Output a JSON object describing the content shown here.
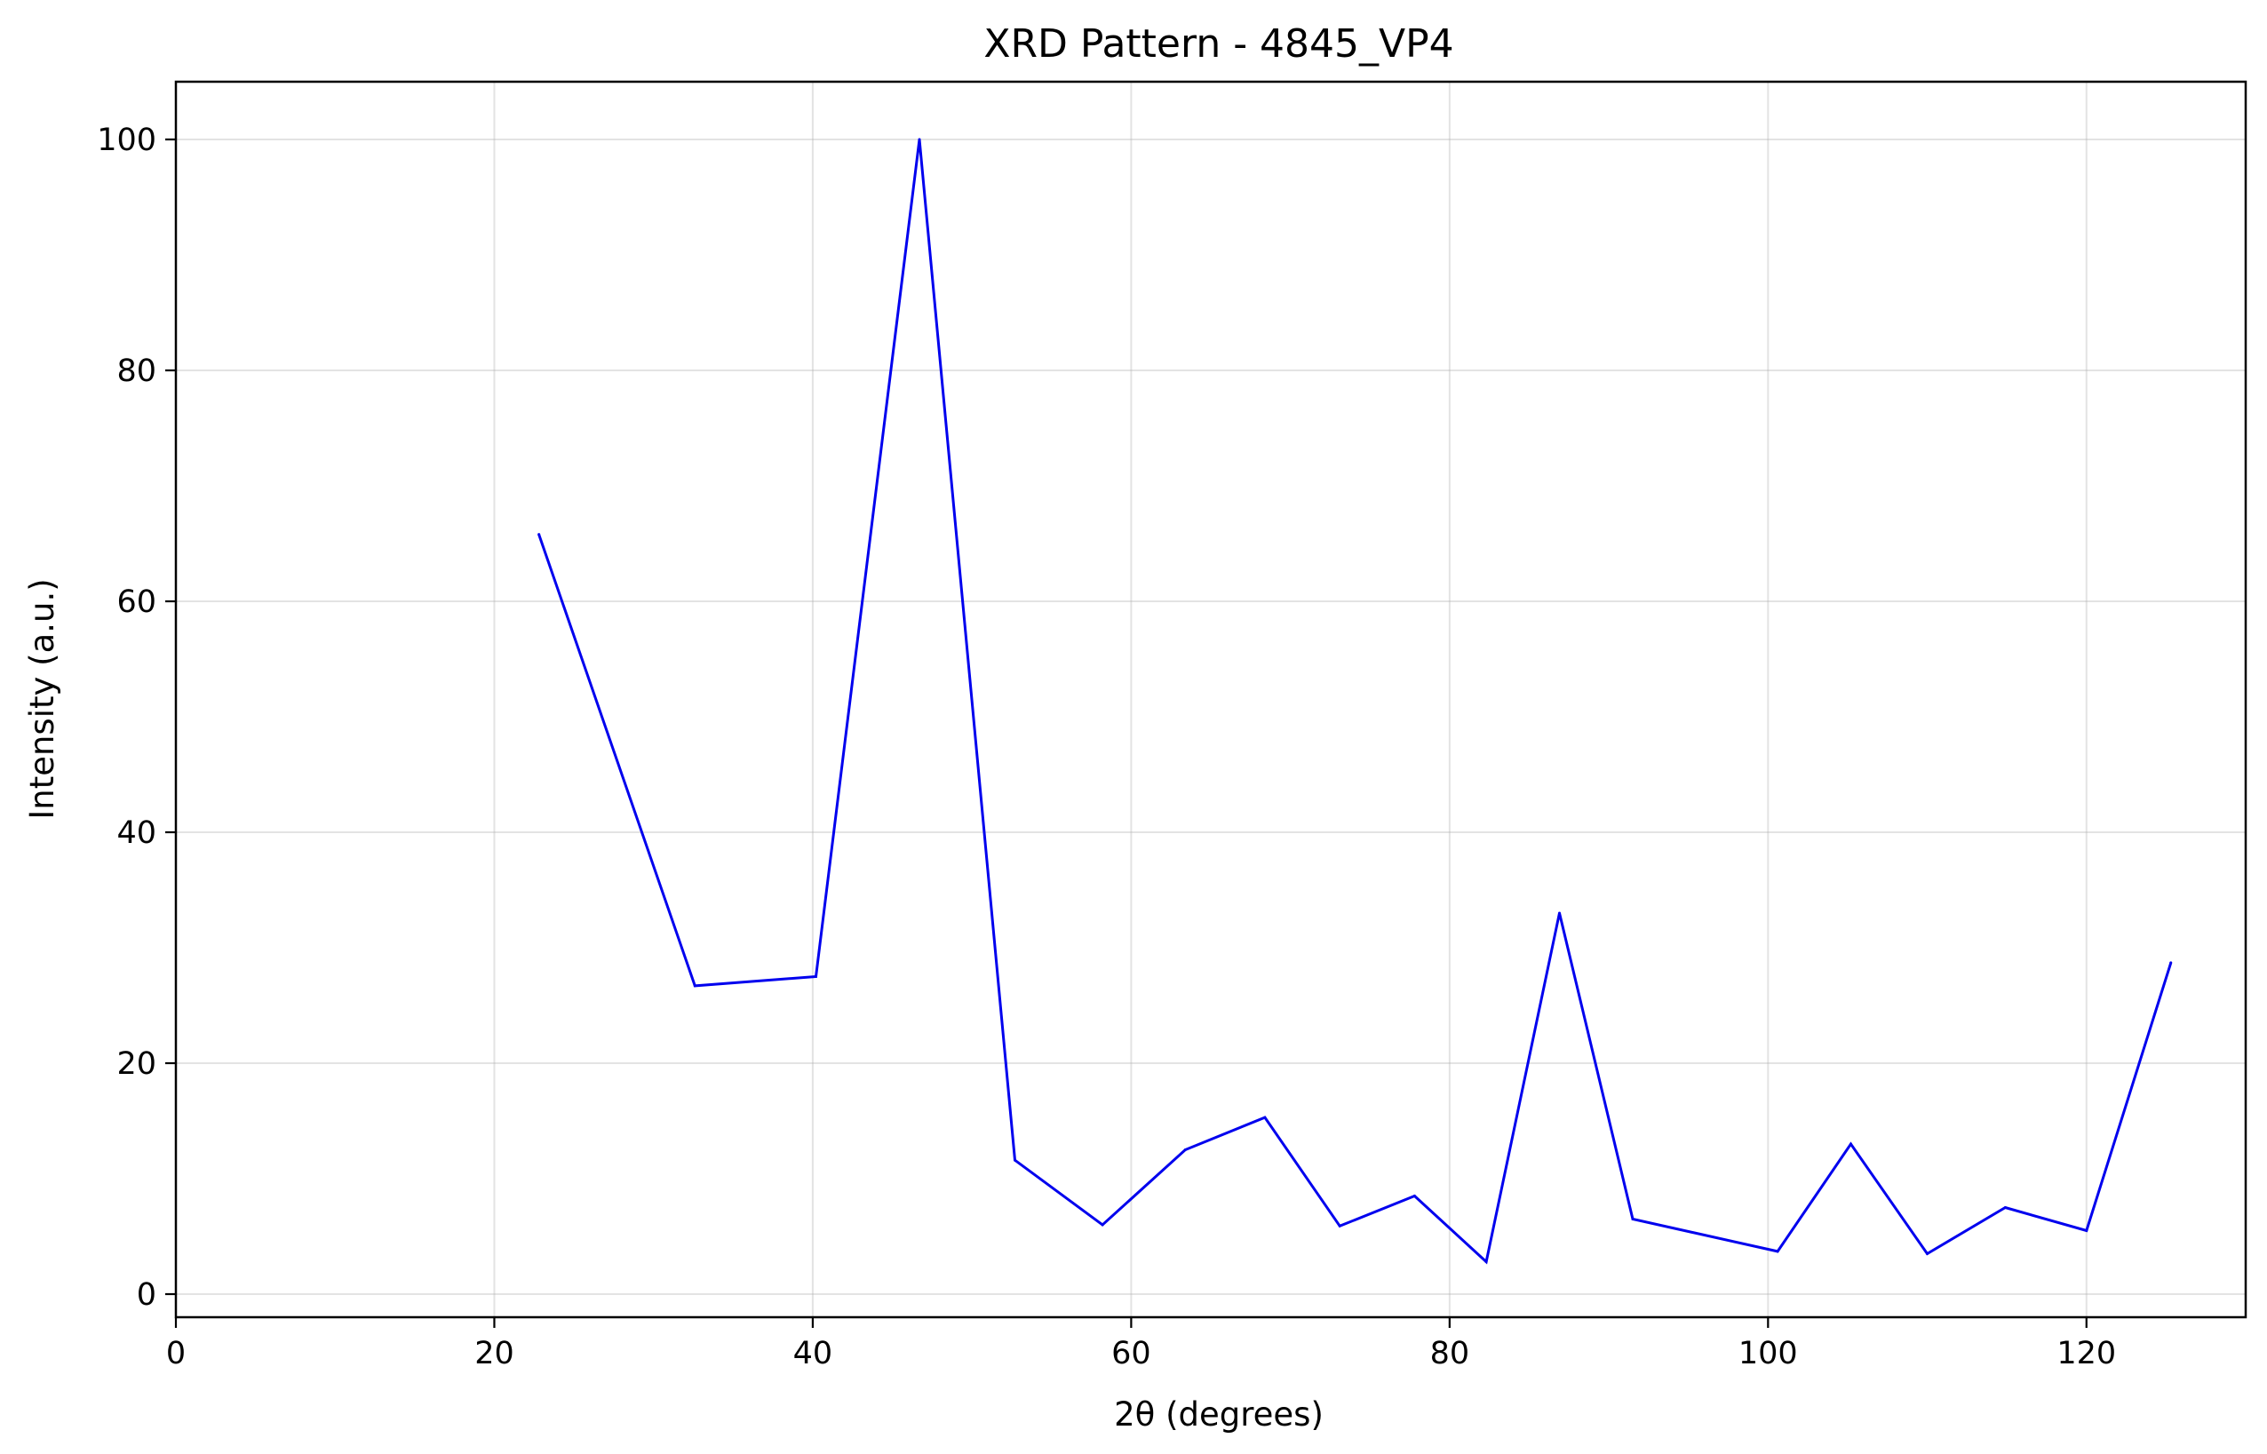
{
  "chart_data": {
    "type": "line",
    "title": "XRD Pattern - 4845_VP4",
    "xlabel": "2θ (degrees)",
    "ylabel": "Intensity (a.u.)",
    "xlim": [
      0,
      130
    ],
    "ylim": [
      -2,
      105
    ],
    "xticks": [
      0,
      20,
      40,
      60,
      80,
      100,
      120
    ],
    "yticks": [
      0,
      20,
      40,
      60,
      80,
      100
    ],
    "grid": true,
    "series": [
      {
        "color": "#0000ee",
        "x": [
          22.8,
          32.6,
          40.2,
          46.7,
          52.7,
          58.2,
          63.4,
          68.4,
          73.1,
          77.8,
          82.3,
          86.9,
          91.5,
          100.6,
          105.2,
          110.0,
          114.9,
          120.0,
          125.3
        ],
        "y": [
          65.8,
          26.7,
          27.5,
          100.0,
          11.6,
          6.0,
          12.5,
          15.3,
          5.9,
          8.5,
          2.8,
          33.0,
          6.5,
          3.7,
          13.0,
          3.5,
          7.5,
          5.5,
          28.7
        ]
      }
    ]
  }
}
